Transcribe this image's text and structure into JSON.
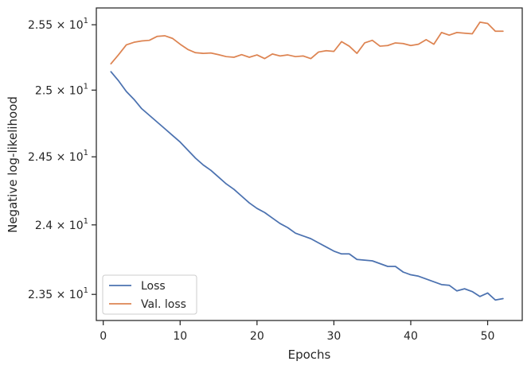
{
  "chart_data": {
    "type": "line",
    "xlabel": "Epochs",
    "ylabel": "Negative log-likelihood",
    "xlim": [
      -0.9,
      54.5
    ],
    "ylim": [
      23.315,
      25.63
    ],
    "y_scale": "log",
    "grid": false,
    "legend_position": "lower-left",
    "x_ticks": [
      {
        "value": 0,
        "label": "0"
      },
      {
        "value": 10,
        "label": "10"
      },
      {
        "value": 20,
        "label": "20"
      },
      {
        "value": 30,
        "label": "30"
      },
      {
        "value": 40,
        "label": "40"
      },
      {
        "value": 50,
        "label": "50"
      }
    ],
    "y_ticks": [
      {
        "value": 23.5,
        "mantissa": "2.35",
        "base": "10",
        "exp": "1"
      },
      {
        "value": 24.0,
        "mantissa": "2.4",
        "base": "10",
        "exp": "1"
      },
      {
        "value": 24.5,
        "mantissa": "2.45",
        "base": "10",
        "exp": "1"
      },
      {
        "value": 25.0,
        "mantissa": "2.5",
        "base": "10",
        "exp": "1"
      },
      {
        "value": 25.5,
        "mantissa": "2.55",
        "base": "10",
        "exp": "1"
      }
    ],
    "x": [
      1,
      2,
      3,
      4,
      5,
      6,
      7,
      8,
      9,
      10,
      11,
      12,
      13,
      14,
      15,
      16,
      17,
      18,
      19,
      20,
      21,
      22,
      23,
      24,
      25,
      26,
      27,
      28,
      29,
      30,
      31,
      32,
      33,
      34,
      35,
      36,
      37,
      38,
      39,
      40,
      41,
      42,
      43,
      44,
      45,
      46,
      47,
      48,
      49,
      50,
      51,
      52
    ],
    "series": [
      {
        "name": "Loss",
        "color": "#4c72b0",
        "values": [
          25.14,
          25.07,
          24.99,
          24.93,
          24.86,
          24.81,
          24.76,
          24.71,
          24.66,
          24.61,
          24.55,
          24.49,
          24.44,
          24.4,
          24.35,
          24.3,
          24.26,
          24.21,
          24.16,
          24.12,
          24.09,
          24.05,
          24.01,
          23.98,
          23.94,
          23.92,
          23.9,
          23.87,
          23.84,
          23.81,
          23.79,
          23.79,
          23.75,
          23.745,
          23.74,
          23.72,
          23.7,
          23.7,
          23.66,
          23.64,
          23.63,
          23.61,
          23.59,
          23.57,
          23.565,
          23.525,
          23.54,
          23.52,
          23.485,
          23.51,
          23.46,
          23.47
        ]
      },
      {
        "name": "Val. loss",
        "color": "#dd8452",
        "values": [
          25.2,
          25.27,
          25.345,
          25.365,
          25.375,
          25.38,
          25.41,
          25.415,
          25.395,
          25.35,
          25.31,
          25.285,
          25.28,
          25.283,
          25.27,
          25.255,
          25.25,
          25.27,
          25.25,
          25.268,
          25.24,
          25.275,
          25.26,
          25.268,
          25.255,
          25.26,
          25.24,
          25.29,
          25.3,
          25.295,
          25.37,
          25.335,
          25.28,
          25.36,
          25.38,
          25.335,
          25.34,
          25.36,
          25.355,
          25.34,
          25.35,
          25.385,
          25.35,
          25.44,
          25.42,
          25.44,
          25.435,
          25.43,
          25.52,
          25.51,
          25.45,
          25.45
        ]
      }
    ]
  }
}
